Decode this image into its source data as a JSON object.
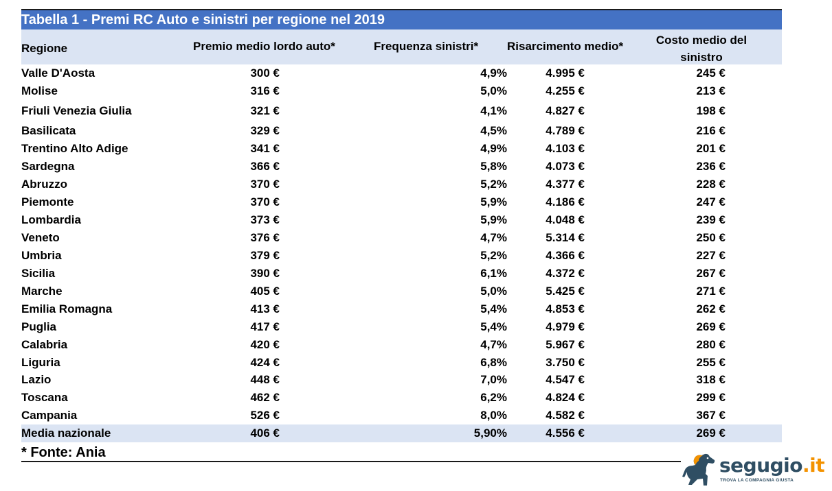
{
  "table": {
    "title": "Tabella 1 - Premi RC Auto e sinistri per regione nel 2019",
    "headers": {
      "region": "Regione",
      "premio": "Premio medio lordo auto*",
      "frequenza": "Frequenza sinistri*",
      "risarcimento": "Risarcimento medio*",
      "costo": "Costo medio  del sinistro"
    },
    "rows": [
      {
        "region": "Valle D'Aosta",
        "premio": "300 €",
        "frequenza": "4,9%",
        "risarcimento": "4.995 €",
        "costo": "245 €"
      },
      {
        "region": "Molise",
        "premio": "316 €",
        "frequenza": "5,0%",
        "risarcimento": "4.255 €",
        "costo": "213 €"
      },
      {
        "region": "Friuli Venezia Giulia",
        "premio": "321 €",
        "frequenza": "4,1%",
        "risarcimento": "4.827 €",
        "costo": "198 €"
      },
      {
        "region": "Basilicata",
        "premio": "329 €",
        "frequenza": "4,5%",
        "risarcimento": "4.789 €",
        "costo": "216 €"
      },
      {
        "region": "Trentino Alto Adige",
        "premio": "341 €",
        "frequenza": "4,9%",
        "risarcimento": "4.103 €",
        "costo": "201 €"
      },
      {
        "region": "Sardegna",
        "premio": "366 €",
        "frequenza": "5,8%",
        "risarcimento": "4.073 €",
        "costo": "236 €"
      },
      {
        "region": "Abruzzo",
        "premio": "370 €",
        "frequenza": "5,2%",
        "risarcimento": "4.377 €",
        "costo": "228 €"
      },
      {
        "region": "Piemonte",
        "premio": "370 €",
        "frequenza": "5,9%",
        "risarcimento": "4.186 €",
        "costo": "247 €"
      },
      {
        "region": "Lombardia",
        "premio": "373 €",
        "frequenza": "5,9%",
        "risarcimento": "4.048 €",
        "costo": "239 €"
      },
      {
        "region": "Veneto",
        "premio": "376 €",
        "frequenza": "4,7%",
        "risarcimento": "5.314 €",
        "costo": "250 €"
      },
      {
        "region": "Umbria",
        "premio": "379 €",
        "frequenza": "5,2%",
        "risarcimento": "4.366 €",
        "costo": "227 €"
      },
      {
        "region": "Sicilia",
        "premio": "390 €",
        "frequenza": "6,1%",
        "risarcimento": "4.372 €",
        "costo": "267 €"
      },
      {
        "region": "Marche",
        "premio": "405 €",
        "frequenza": "5,0%",
        "risarcimento": "5.425 €",
        "costo": "271 €"
      },
      {
        "region": "Emilia Romagna",
        "premio": "413 €",
        "frequenza": "5,4%",
        "risarcimento": "4.853 €",
        "costo": "262 €"
      },
      {
        "region": "Puglia",
        "premio": "417 €",
        "frequenza": "5,4%",
        "risarcimento": "4.979 €",
        "costo": "269 €"
      },
      {
        "region": "Calabria",
        "premio": "420 €",
        "frequenza": "4,7%",
        "risarcimento": "5.967 €",
        "costo": "280 €"
      },
      {
        "region": "Liguria",
        "premio": "424 €",
        "frequenza": "6,8%",
        "risarcimento": "3.750 €",
        "costo": "255 €"
      },
      {
        "region": "Lazio",
        "premio": "448 €",
        "frequenza": "7,0%",
        "risarcimento": "4.547 €",
        "costo": "318 €"
      },
      {
        "region": "Toscana",
        "premio": "462 €",
        "frequenza": "6,2%",
        "risarcimento": "4.824 €",
        "costo": "299 €"
      },
      {
        "region": "Campania",
        "premio": "526 €",
        "frequenza": "8,0%",
        "risarcimento": "4.582 €",
        "costo": "367 €"
      }
    ],
    "average": {
      "region": "Media nazionale",
      "premio": "406 €",
      "frequenza": "5,90%",
      "risarcimento": "4.556 €",
      "costo": "269 €"
    },
    "source_note": "* Fonte: Ania"
  },
  "logo": {
    "brand_name": "segugio",
    "brand_tld": ".it",
    "tagline": "TROVA LA COMPAGNIA GIUSTA",
    "icon": "dog-icon"
  },
  "colors": {
    "title_bar": "#4472c4",
    "header_band": "#dbe4f3",
    "brand_dark": "#2f4e63",
    "brand_orange": "#f39200"
  }
}
